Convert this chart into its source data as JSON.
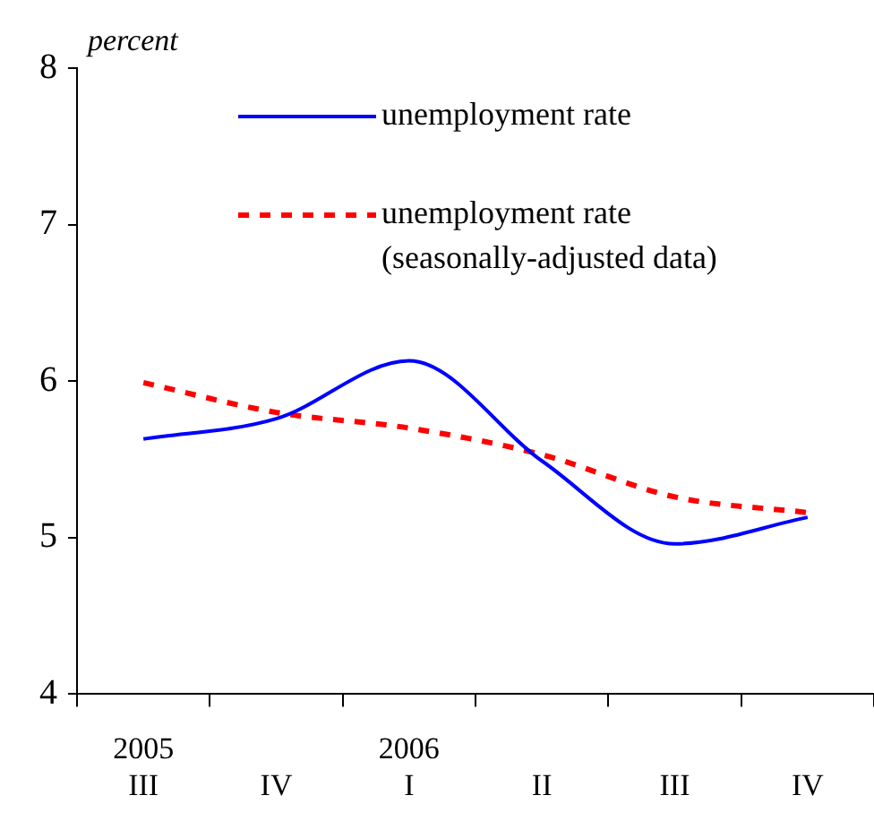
{
  "chart_data": {
    "type": "line",
    "ylabel": "percent",
    "categories": [
      "2005\nIII",
      "IV",
      "2006\nI",
      "II",
      "III",
      "IV"
    ],
    "series": [
      {
        "name": "unemployment rate",
        "color": "#0000ff",
        "values": [
          5.63,
          5.76,
          6.13,
          5.49,
          4.96,
          5.13
        ],
        "line_style": "solid"
      },
      {
        "name": "unemployment rate (seasonally-adjusted data)",
        "color": "#ff0000",
        "values": [
          5.99,
          5.8,
          5.7,
          5.53,
          5.26,
          5.16
        ],
        "line_style": "dashed"
      }
    ],
    "ylim": [
      4,
      8
    ],
    "yticks": [
      4,
      5,
      6,
      7,
      8
    ],
    "grid": false,
    "legend": "top",
    "marker": "none"
  }
}
